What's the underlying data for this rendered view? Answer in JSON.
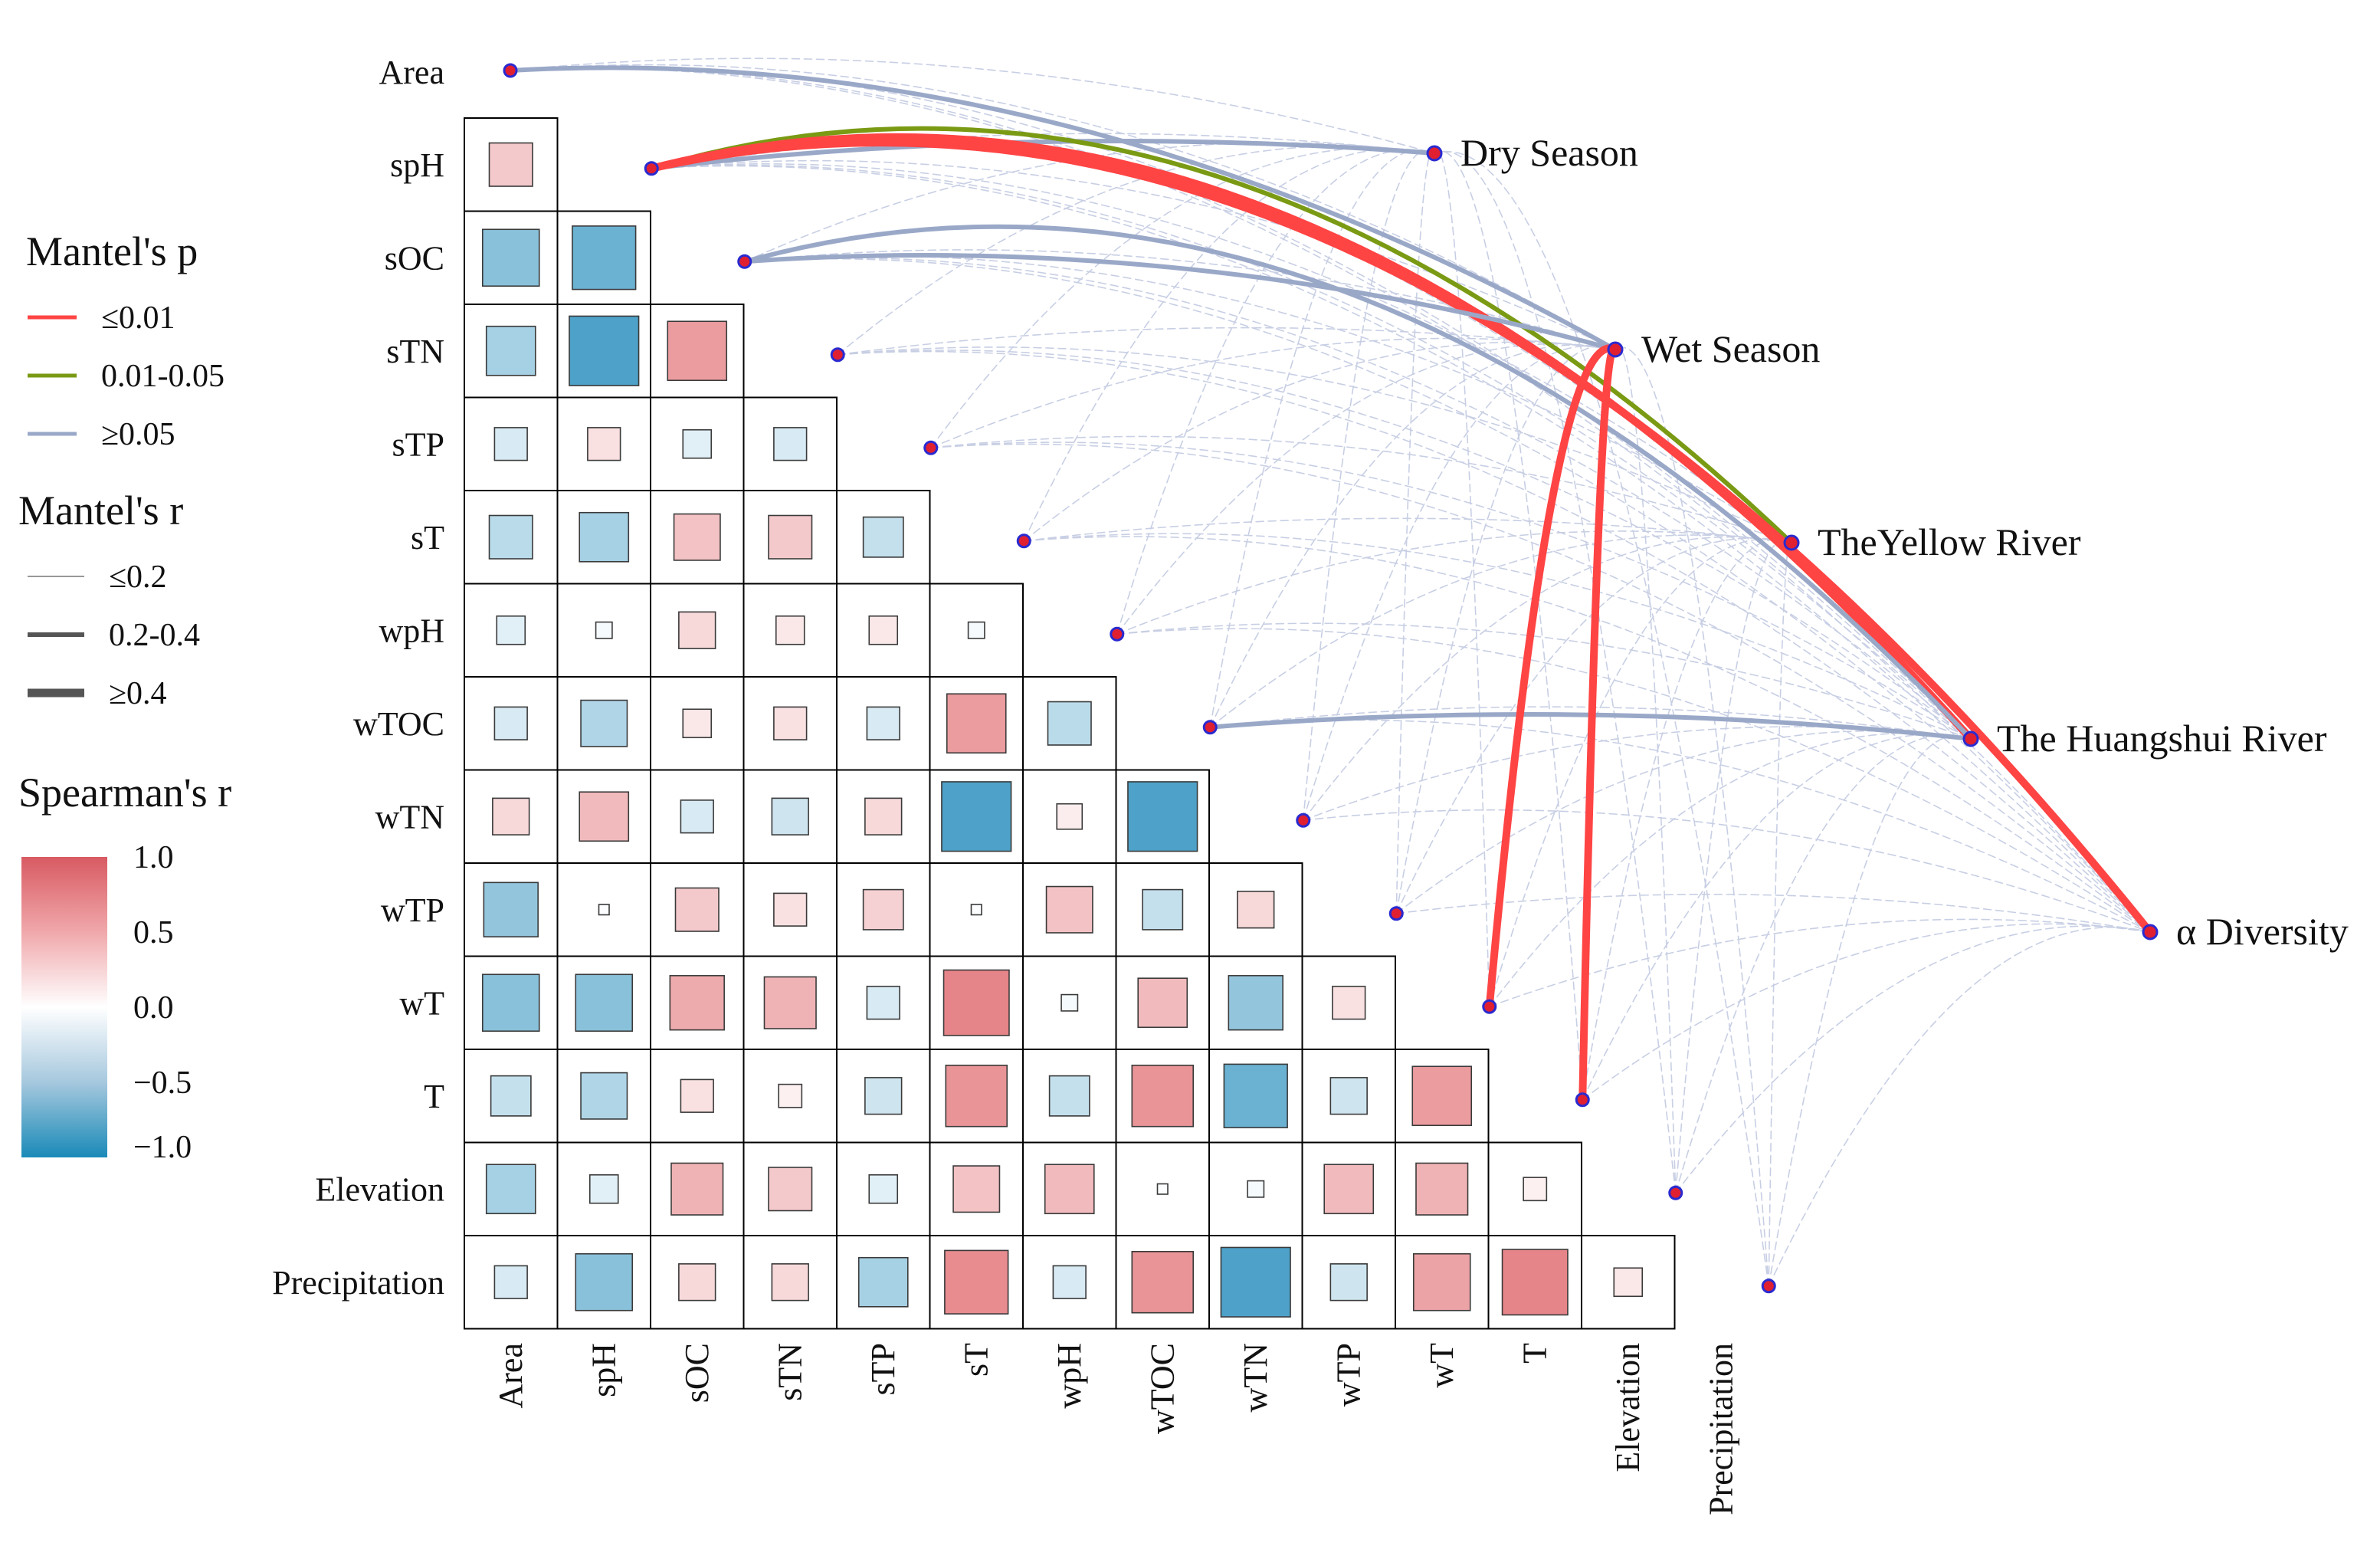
{
  "chart_data": {
    "type": "heatmap",
    "variables": [
      "Area",
      "spH",
      "sOC",
      "sTN",
      "sTP",
      "sT",
      "wpH",
      "wTOC",
      "wTN",
      "wTP",
      "wT",
      "T",
      "Elevation",
      "Precipitation"
    ],
    "spearman_lower": [
      [],
      [
        0.35
      ],
      [
        -0.6,
        -0.75
      ],
      [
        -0.45,
        -0.9,
        0.65
      ],
      [
        -0.2,
        0.2,
        -0.15,
        -0.2
      ],
      [
        -0.35,
        -0.45,
        0.4,
        0.35,
        -0.3
      ],
      [
        -0.15,
        -0.05,
        0.25,
        0.15,
        0.15,
        -0.05
      ],
      [
        -0.2,
        -0.4,
        0.15,
        0.2,
        -0.2,
        0.65,
        -0.35
      ],
      [
        0.25,
        0.45,
        -0.2,
        -0.25,
        0.25,
        -0.9,
        0.12,
        -0.9
      ],
      [
        -0.55,
        -0.02,
        0.35,
        0.2,
        0.3,
        -0.02,
        0.4,
        -0.3,
        0.25
      ],
      [
        -0.6,
        -0.6,
        0.55,
        0.5,
        -0.2,
        0.8,
        -0.05,
        0.45,
        -0.55,
        0.2
      ],
      [
        -0.3,
        -0.4,
        0.2,
        0.1,
        -0.25,
        0.7,
        -0.3,
        0.7,
        -0.75,
        -0.25,
        0.65
      ],
      [
        -0.45,
        -0.15,
        0.5,
        0.35,
        -0.15,
        0.4,
        0.45,
        -0.02,
        -0.05,
        0.45,
        0.5,
        0.1
      ],
      [
        -0.2,
        -0.6,
        0.25,
        0.25,
        -0.45,
        0.75,
        -0.2,
        0.7,
        -0.9,
        -0.25,
        0.6,
        0.8,
        0.15
      ]
    ],
    "targets": [
      "Dry Season",
      "Wet Season",
      "TheYellow River",
      "The Huangshui River",
      "α Diversity"
    ],
    "mantel_edges": [
      {
        "from": "Area",
        "to": "Wet Season",
        "p": "≥0.05",
        "r": "0.2-0.4"
      },
      {
        "from": "spH",
        "to": "Dry Season",
        "p": "≥0.05",
        "r": "0.2-0.4"
      },
      {
        "from": "spH",
        "to": "TheYellow River",
        "p": "0.01-0.05",
        "r": "0.2-0.4"
      },
      {
        "from": "spH",
        "to": "The Huangshui River",
        "p": "≤0.01",
        "r": "≥0.4"
      },
      {
        "from": "spH",
        "to": "α Diversity",
        "p": "≤0.01",
        "r": "≥0.4"
      },
      {
        "from": "sOC",
        "to": "Wet Season",
        "p": "≥0.05",
        "r": "0.2-0.4"
      },
      {
        "from": "sOC",
        "to": "The Huangshui River",
        "p": "≥0.05",
        "r": "0.2-0.4"
      },
      {
        "from": "wTOC",
        "to": "The Huangshui River",
        "p": "≥0.05",
        "r": "0.2-0.4"
      },
      {
        "from": "wT",
        "to": "Wet Season",
        "p": "≤0.01",
        "r": "≥0.4"
      },
      {
        "from": "T",
        "to": "Wet Season",
        "p": "≤0.01",
        "r": "≥0.4"
      }
    ],
    "legend_mantel_p": {
      "title": "Mantel's p",
      "items": [
        "≤0.01",
        "0.01-0.05",
        "≥0.05"
      ],
      "colors": [
        "#ff4444",
        "#7a9a14",
        "#9aa8c8"
      ]
    },
    "legend_mantel_r": {
      "title": "Mantel's r",
      "items": [
        "≤0.2",
        "0.2-0.4",
        "≥0.4"
      ]
    },
    "legend_spearman": {
      "title": "Spearman's r",
      "ticks": [
        "1.0",
        "0.5",
        "0.0",
        "−0.5",
        "−1.0"
      ]
    },
    "colors": {
      "positive": "#e0666b",
      "neutral": "#ffffff",
      "negative": "#3a97c2",
      "thin_edge": "#c8cfe4",
      "node_fill": "#e02030",
      "node_stroke": "#2a2ad0"
    }
  }
}
